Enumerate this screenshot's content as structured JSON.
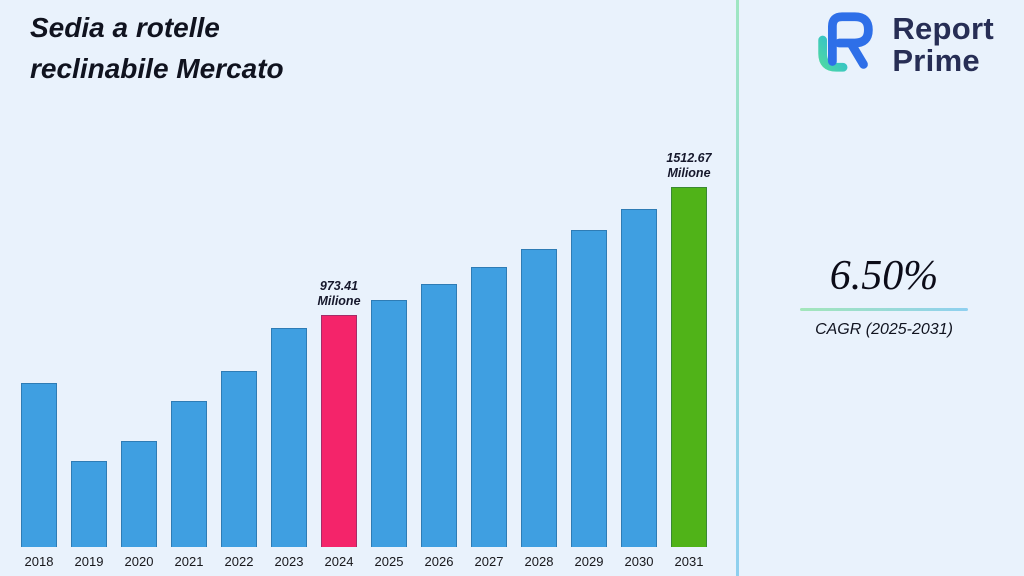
{
  "title": {
    "line1": "Sedia a rotelle",
    "line2": "reclinabile Mercato"
  },
  "logo": {
    "line1": "Report",
    "line2": "Prime",
    "icon": "report-prime-mark",
    "brand_navy": "#272e55",
    "brand_blue": "#2e6fe8",
    "brand_green": "#3fd0a0"
  },
  "cagr": {
    "value": "6.50%",
    "label": "CAGR (2025-2031)"
  },
  "chart_data": {
    "type": "bar",
    "title": "Sedia a rotelle reclinabile Mercato",
    "unit": "Milione",
    "categories": [
      2018,
      2019,
      2020,
      2021,
      2022,
      2023,
      2024,
      2025,
      2026,
      2027,
      2028,
      2029,
      2030,
      2031
    ],
    "values": [
      690,
      362,
      447,
      613,
      740,
      920,
      973.41,
      1036.68,
      1104.06,
      1175.82,
      1252.25,
      1333.65,
      1420.33,
      1512.67
    ],
    "xlabel": "",
    "ylabel": "",
    "ylim": [
      0,
      1600
    ],
    "grid": false,
    "legend": "none",
    "annotations": [
      {
        "year": 2024,
        "value": "973.41",
        "unit": "Milione"
      },
      {
        "year": 2031,
        "value": "1512.67",
        "unit": "Milione"
      }
    ],
    "colors": {
      "default": "#3f9fe1",
      "highlights": {
        "2024": "#f4246a",
        "2031": "#50b318"
      }
    }
  }
}
